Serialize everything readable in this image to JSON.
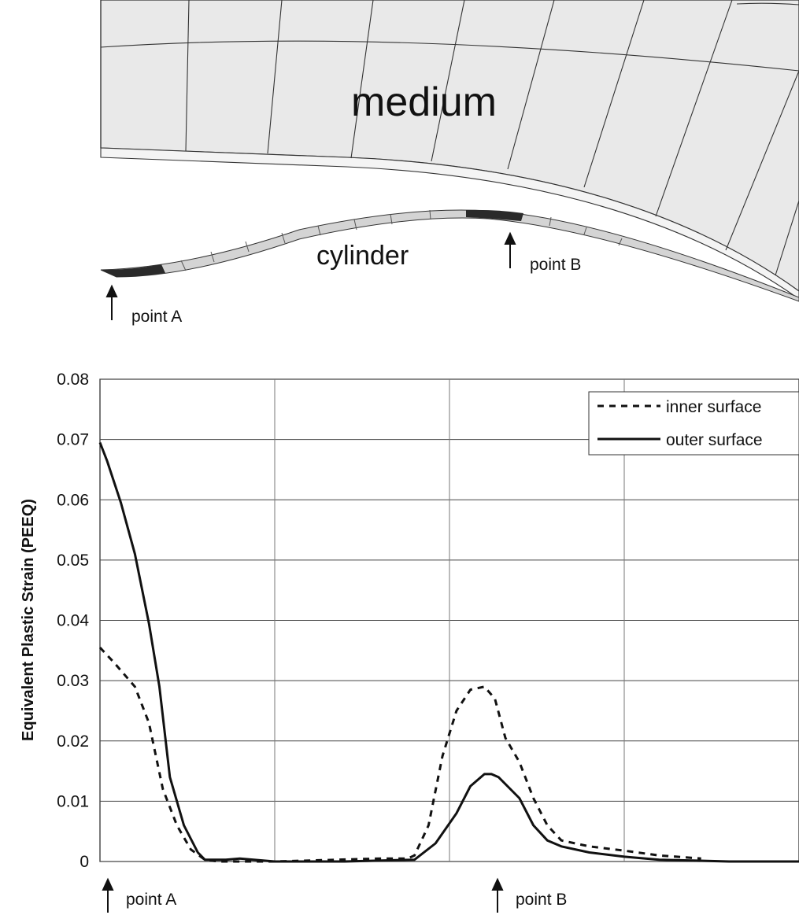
{
  "illustration": {
    "medium_label": "medium",
    "cylinder_label": "cylinder",
    "point_a_label": "point A",
    "point_b_label": "point B"
  },
  "chart_data": {
    "type": "line",
    "title": "",
    "xlabel": "",
    "ylabel": "Equivalent Plastic Strain (PEEQ)",
    "ylim": [
      0,
      0.08
    ],
    "yticks": [
      "0.08",
      "0.07",
      "0.06",
      "0.05",
      "0.04",
      "0.03",
      "0.02",
      "0.01",
      "0"
    ],
    "ytick_values": [
      0.08,
      0.07,
      0.06,
      0.05,
      0.04,
      0.03,
      0.02,
      0.01,
      0
    ],
    "xlim": [
      0,
      1
    ],
    "grid": true,
    "legend_position": "top-right",
    "x_markers": [
      {
        "label": "point A",
        "x": 0.0
      },
      {
        "label": "point B",
        "x": 0.565
      }
    ],
    "series": [
      {
        "name": "inner surface",
        "style": "dashed",
        "x": [
          0.0,
          0.02,
          0.05,
          0.07,
          0.09,
          0.11,
          0.13,
          0.15,
          0.17,
          0.2,
          0.25,
          0.4,
          0.44,
          0.45,
          0.47,
          0.49,
          0.51,
          0.53,
          0.55,
          0.565,
          0.58,
          0.6,
          0.62,
          0.64,
          0.66,
          0.7,
          0.75,
          0.8,
          0.86
        ],
        "values": [
          0.0355,
          0.033,
          0.029,
          0.023,
          0.012,
          0.006,
          0.002,
          0.0003,
          0.0,
          0.0,
          0.0,
          0.0005,
          0.0005,
          0.001,
          0.006,
          0.0175,
          0.025,
          0.0285,
          0.029,
          0.027,
          0.0205,
          0.0165,
          0.0105,
          0.006,
          0.0035,
          0.0025,
          0.0018,
          0.001,
          0.0005
        ]
      },
      {
        "name": "outer surface",
        "style": "solid",
        "x": [
          0.0,
          0.01,
          0.03,
          0.05,
          0.07,
          0.085,
          0.1,
          0.12,
          0.14,
          0.15,
          0.18,
          0.2,
          0.25,
          0.35,
          0.45,
          0.48,
          0.51,
          0.53,
          0.55,
          0.56,
          0.57,
          0.6,
          0.62,
          0.64,
          0.66,
          0.7,
          0.75,
          0.8,
          0.9,
          1.0
        ],
        "values": [
          0.0695,
          0.0665,
          0.0595,
          0.051,
          0.0395,
          0.029,
          0.014,
          0.006,
          0.0015,
          0.0003,
          0.0003,
          0.0005,
          0.0,
          0.0,
          0.0003,
          0.003,
          0.008,
          0.0125,
          0.0145,
          0.0145,
          0.014,
          0.0105,
          0.006,
          0.0035,
          0.0025,
          0.0015,
          0.0008,
          0.0003,
          0.0,
          0.0
        ]
      }
    ]
  }
}
